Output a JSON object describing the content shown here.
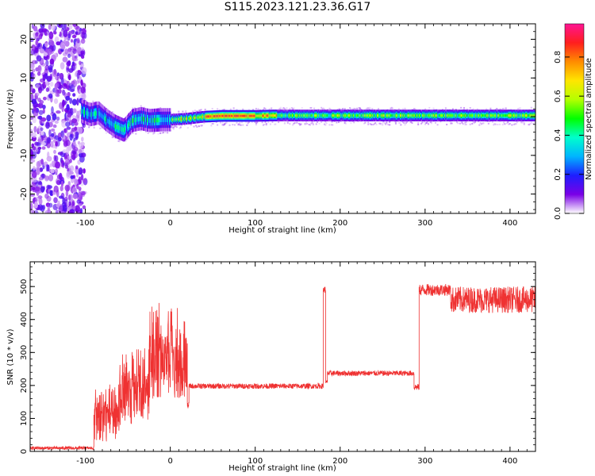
{
  "title": "S115.2023.121.23.36.G17",
  "chart_data": [
    {
      "type": "heatmap",
      "xlabel": "Height of straight line (km)",
      "ylabel": "Frequency (Hz)",
      "xlim": [
        -165,
        430
      ],
      "ylim": [
        -25,
        24
      ],
      "x_ticks": [
        -100,
        0,
        100,
        200,
        300,
        400
      ],
      "y_ticks": [
        -20,
        -10,
        0,
        10,
        20
      ],
      "colorbar": {
        "label": "Normalized spectral amplitude",
        "range": [
          0.0,
          0.97
        ],
        "ticks": [
          0.0,
          0.2,
          0.4,
          0.6,
          0.8
        ],
        "colormap": [
          "#ffffff",
          "#7a00e6",
          "#1e1eff",
          "#00b4ff",
          "#00ffcc",
          "#00ff00",
          "#b4ff00",
          "#ffe600",
          "#ff8c00",
          "#ff1e1e",
          "#ff1493"
        ]
      },
      "ridge": {
        "x": [
          -105,
          -95,
          -85,
          -75,
          -65,
          -55,
          -45,
          -35,
          -25,
          -10,
          0,
          20,
          40,
          60,
          100,
          120,
          200,
          300,
          430
        ],
        "freq": [
          1.5,
          0.5,
          1.0,
          -1.0,
          -2.5,
          -3.5,
          -1.0,
          -0.5,
          -1.0,
          -0.8,
          -0.8,
          -0.5,
          0.0,
          0.2,
          0.2,
          0.3,
          0.3,
          0.3,
          0.3
        ]
      },
      "noise_region_x": [
        -165,
        -100
      ],
      "grid": false
    },
    {
      "type": "line",
      "xlabel": "Height of straight line (km)",
      "ylabel": "SNR (10 * v/v)",
      "xlim": [
        -165,
        430
      ],
      "ylim": [
        0,
        575
      ],
      "x_ticks": [
        -100,
        0,
        100,
        200,
        300,
        400
      ],
      "y_ticks": [
        0,
        100,
        200,
        300,
        400,
        500
      ],
      "color": "#ef3232",
      "segments": [
        {
          "x": [
            -165,
            -90
          ],
          "mean": 10,
          "noise": 5
        },
        {
          "x": [
            -90,
            -60
          ],
          "mean": 90,
          "noise": 60
        },
        {
          "x": [
            -60,
            -25
          ],
          "mean": 160,
          "noise": 80
        },
        {
          "x": [
            -25,
            20
          ],
          "mean": 260,
          "noise": 100
        },
        {
          "x": [
            20,
            22
          ],
          "mean": 140,
          "noise": 10
        },
        {
          "x": [
            22,
            180
          ],
          "mean": 198,
          "noise": 8
        },
        {
          "x": [
            180,
            183
          ],
          "mean": 490,
          "noise": 10
        },
        {
          "x": [
            183,
            185
          ],
          "mean": 210,
          "noise": 5
        },
        {
          "x": [
            185,
            287
          ],
          "mean": 237,
          "noise": 8
        },
        {
          "x": [
            287,
            293
          ],
          "mean": 195,
          "noise": 10
        },
        {
          "x": [
            293,
            330
          ],
          "mean": 490,
          "noise": 18
        },
        {
          "x": [
            330,
            430
          ],
          "mean": 460,
          "noise": 40
        }
      ],
      "grid": false
    }
  ]
}
